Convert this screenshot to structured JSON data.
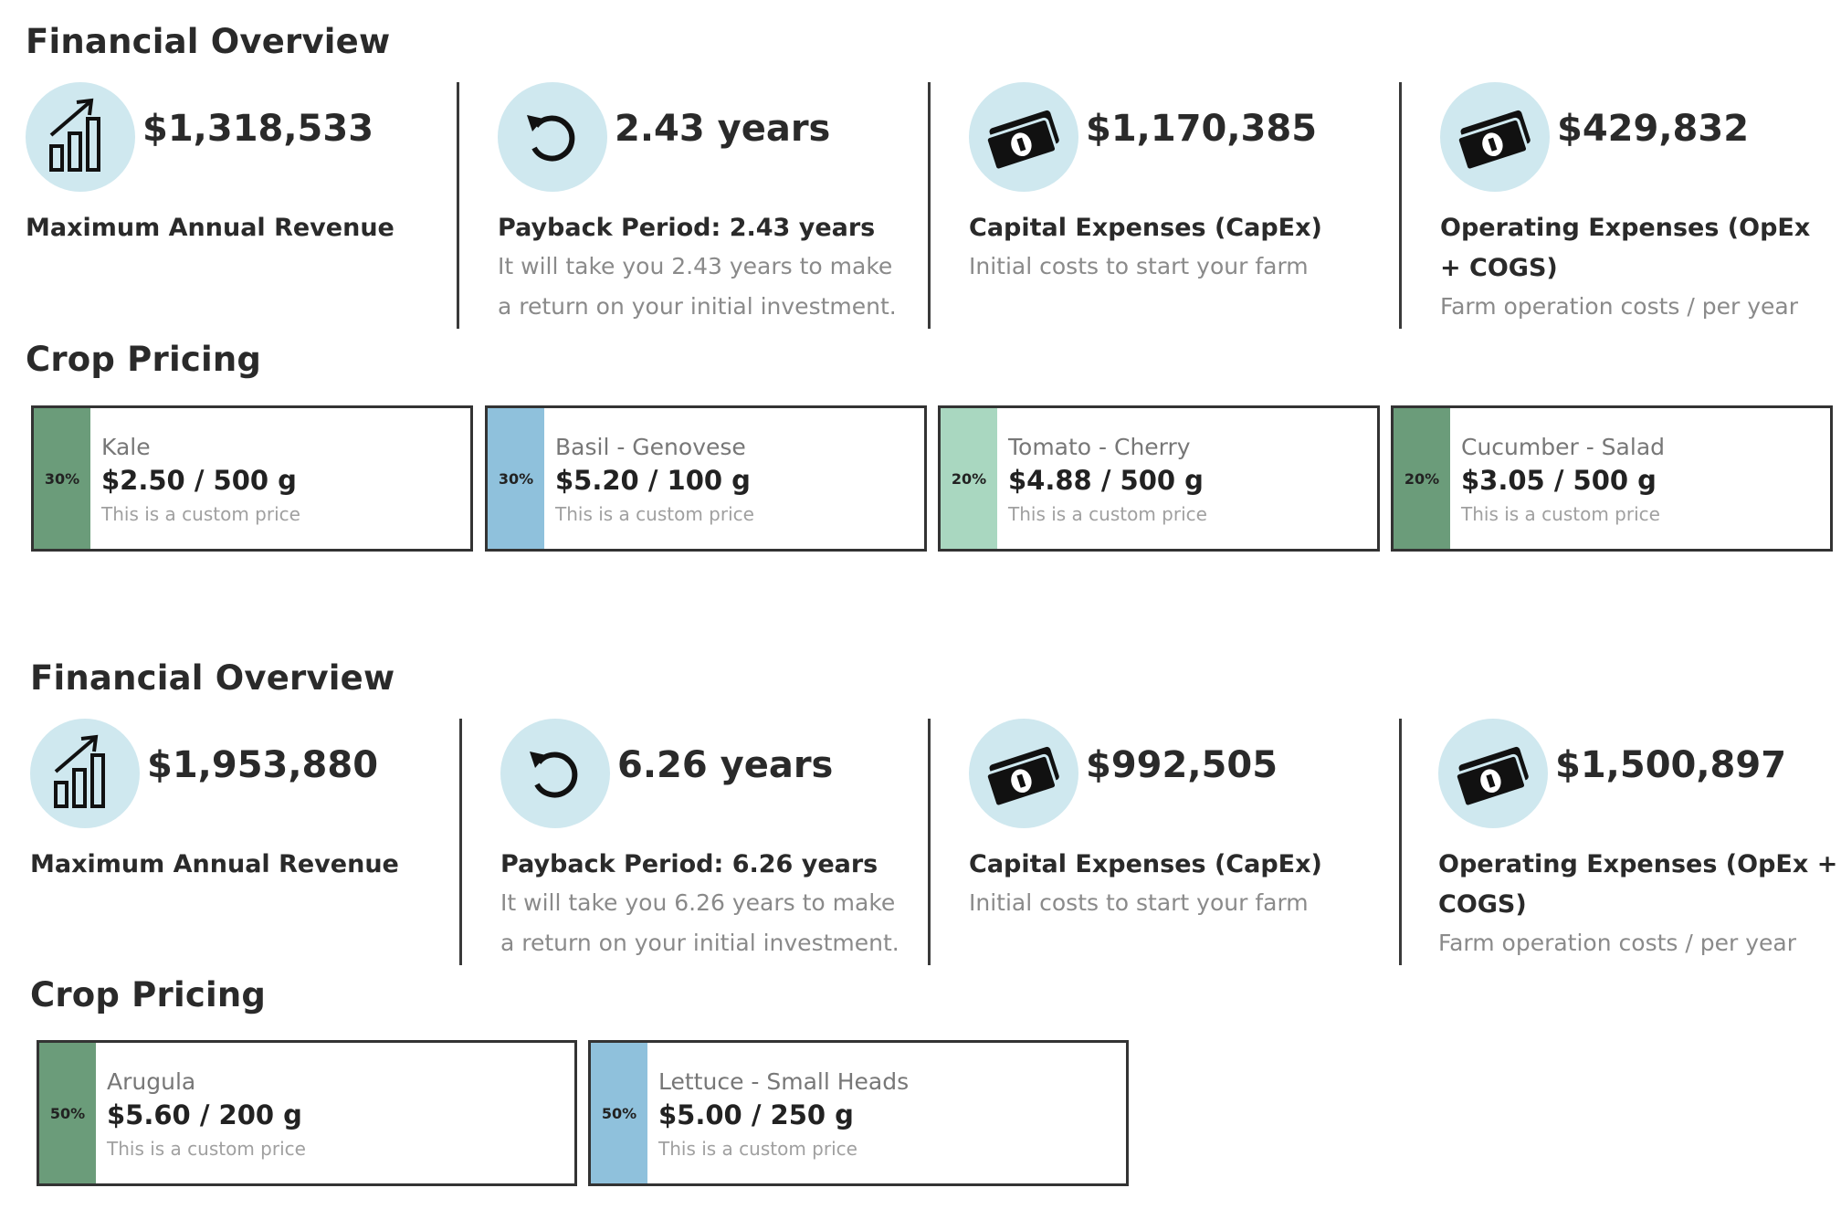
{
  "colors": {
    "icon_bg": "#cfe8ef",
    "dark_green": "#6b9c7a",
    "light_blue": "#8fc1dc",
    "mint_green": "#a9d7c0"
  },
  "sections": [
    {
      "financial_title": "Financial Overview",
      "metrics": [
        {
          "icon": "revenue-chart-icon",
          "value": "$1,318,533",
          "label": "Maximum Annual Revenue",
          "desc": ""
        },
        {
          "icon": "refresh-icon",
          "value": "2.43 years",
          "label": "Payback Period: 2.43 years",
          "desc": "It will take you 2.43 years to make a return on your initial investment."
        },
        {
          "icon": "money-icon",
          "value": "$1,170,385",
          "label": "Capital Expenses (CapEx)",
          "desc": "Initial costs to start your farm"
        },
        {
          "icon": "money-icon",
          "value": "$429,832",
          "label": "Operating Expenses (OpEx + COGS)",
          "desc": "Farm operation costs / per year"
        }
      ],
      "crop_title": "Crop Pricing",
      "crops": [
        {
          "pct": "30%",
          "name": "Kale",
          "price": "$2.50 / 500 g",
          "note": "This is a custom price",
          "color": "#6b9c7a"
        },
        {
          "pct": "30%",
          "name": "Basil - Genovese",
          "price": "$5.20 / 100 g",
          "note": "This is a custom price",
          "color": "#8fc1dc"
        },
        {
          "pct": "20%",
          "name": "Tomato - Cherry",
          "price": "$4.88 / 500 g",
          "note": "This is a custom price",
          "color": "#a9d7c0"
        },
        {
          "pct": "20%",
          "name": "Cucumber - Salad",
          "price": "$3.05 / 500 g",
          "note": "This is a custom price",
          "color": "#6b9c7a"
        }
      ]
    },
    {
      "financial_title": "Financial Overview",
      "metrics": [
        {
          "icon": "revenue-chart-icon",
          "value": "$1,953,880",
          "label": "Maximum Annual Revenue",
          "desc": ""
        },
        {
          "icon": "refresh-icon",
          "value": "6.26 years",
          "label": "Payback Period: 6.26 years",
          "desc": "It will take you 6.26 years to make a return on your initial investment."
        },
        {
          "icon": "money-icon",
          "value": "$992,505",
          "label": "Capital Expenses (CapEx)",
          "desc": "Initial costs to start your farm"
        },
        {
          "icon": "money-icon",
          "value": "$1,500,897",
          "label": "Operating Expenses (OpEx + COGS)",
          "desc": "Farm operation costs / per year"
        }
      ],
      "crop_title": "Crop Pricing",
      "crops": [
        {
          "pct": "50%",
          "name": "Arugula",
          "price": "$5.60 / 200 g",
          "note": "This is a custom price",
          "color": "#6b9c7a"
        },
        {
          "pct": "50%",
          "name": "Lettuce - Small Heads",
          "price": "$5.00 / 250 g",
          "note": "This is a custom price",
          "color": "#8fc1dc"
        }
      ]
    }
  ]
}
